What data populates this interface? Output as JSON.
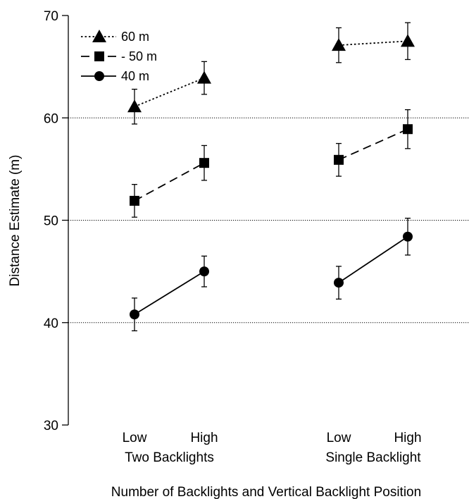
{
  "chart_data": {
    "type": "line",
    "ylabel": "Distance Estimate (m)",
    "xlabel": "Number of Backlights and Vertical Backlight Position",
    "ylim": [
      30,
      70
    ],
    "yticks": [
      30,
      40,
      50,
      60,
      70
    ],
    "gridlines_y": [
      40,
      50,
      60
    ],
    "groups": [
      {
        "label": "Two Backlights",
        "categories": [
          "Low",
          "High"
        ]
      },
      {
        "label": "Single Backlight",
        "categories": [
          "Low",
          "High"
        ]
      }
    ],
    "legend_position": "top-left",
    "series": [
      {
        "name": "60 m",
        "marker": "triangle",
        "line_style": "dotted",
        "points": [
          {
            "group": 0,
            "category": 0,
            "y": 61.1,
            "err": 1.7
          },
          {
            "group": 0,
            "category": 1,
            "y": 63.9,
            "err": 1.6
          },
          {
            "group": 1,
            "category": 0,
            "y": 67.1,
            "err": 1.7
          },
          {
            "group": 1,
            "category": 1,
            "y": 67.5,
            "err": 1.8
          }
        ]
      },
      {
        "name": "- 50 m",
        "marker": "square",
        "line_style": "dashed",
        "points": [
          {
            "group": 0,
            "category": 0,
            "y": 51.9,
            "err": 1.6
          },
          {
            "group": 0,
            "category": 1,
            "y": 55.6,
            "err": 1.7
          },
          {
            "group": 1,
            "category": 0,
            "y": 55.9,
            "err": 1.6
          },
          {
            "group": 1,
            "category": 1,
            "y": 58.9,
            "err": 1.9
          }
        ]
      },
      {
        "name": "40 m",
        "marker": "circle",
        "line_style": "solid",
        "points": [
          {
            "group": 0,
            "category": 0,
            "y": 40.8,
            "err": 1.6
          },
          {
            "group": 0,
            "category": 1,
            "y": 45.0,
            "err": 1.5
          },
          {
            "group": 1,
            "category": 0,
            "y": 43.9,
            "err": 1.6
          },
          {
            "group": 1,
            "category": 1,
            "y": 48.4,
            "err": 1.8
          }
        ]
      }
    ]
  }
}
